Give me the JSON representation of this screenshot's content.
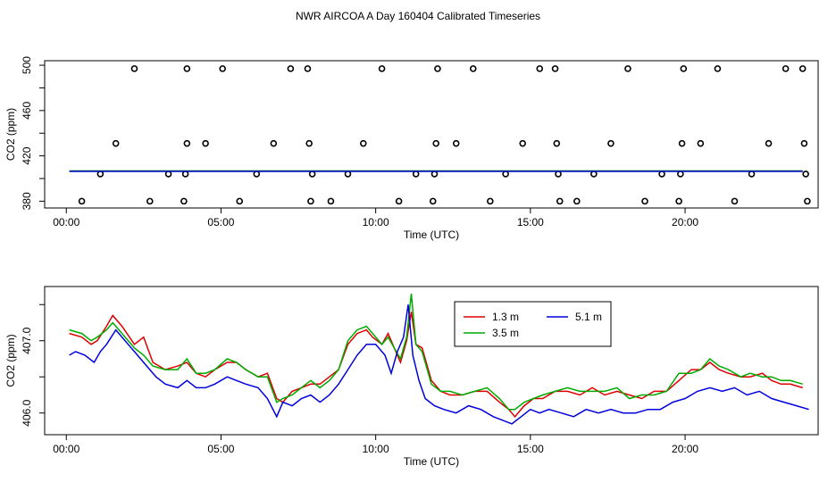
{
  "title": "NWR AIRCOA A  Day 160404  Calibrated Timeseries",
  "chart_data": [
    {
      "type": "scatter",
      "xlabel": "Time (UTC)",
      "ylabel": "CO2 (ppm)",
      "xlim": [
        -0.7,
        24.3
      ],
      "ylim": [
        374,
        504
      ],
      "xticks": [
        0,
        5,
        10,
        15,
        20
      ],
      "xtick_labels": [
        "00:00",
        "05:00",
        "10:00",
        "15:00",
        "20:00"
      ],
      "yticks": [
        380,
        420,
        460,
        500
      ],
      "ytick_labels": [
        "380",
        "420",
        "460",
        "500"
      ],
      "yminor": [
        400,
        440,
        480
      ],
      "grid": false,
      "series": [
        {
          "marker": "circle",
          "color": "#000000",
          "x": [
            0.5,
            1.1,
            1.6,
            2.2,
            2.7,
            3.3,
            3.8,
            3.85,
            3.9,
            3.9,
            4.5,
            5.05,
            5.6,
            6.15,
            6.7,
            7.25,
            7.8,
            7.85,
            7.9,
            7.95,
            8.55,
            9.1,
            9.6,
            10.2,
            10.75,
            11.3,
            11.85,
            11.9,
            11.95,
            12.0,
            12.6,
            13.15,
            13.7,
            14.2,
            14.75,
            15.3,
            15.8,
            15.85,
            15.9,
            15.95,
            16.5,
            17.05,
            17.6,
            18.15,
            18.7,
            19.25,
            19.8,
            19.85,
            19.9,
            19.95,
            20.5,
            21.05,
            21.6,
            22.15,
            22.7,
            23.25,
            23.8,
            23.85,
            23.9,
            23.95
          ],
          "y": [
            380,
            404,
            431,
            497,
            380,
            404,
            380,
            404,
            431,
            497,
            431,
            497,
            380,
            404,
            431,
            497,
            497,
            431,
            380,
            404,
            380,
            404,
            431,
            497,
            380,
            404,
            380,
            404,
            431,
            497,
            431,
            497,
            380,
            404,
            431,
            497,
            497,
            431,
            404,
            380,
            380,
            404,
            431,
            497,
            380,
            404,
            380,
            404,
            431,
            497,
            431,
            497,
            380,
            404,
            431,
            497,
            497,
            431,
            404,
            380
          ]
        },
        {
          "name": "1.3 m",
          "color": "#dd0000",
          "x": [
            0.1,
            23.8
          ],
          "y": [
            406.6,
            406.6
          ]
        },
        {
          "name": "3.5 m",
          "color": "#00aa00",
          "x": [
            0.1,
            23.8
          ],
          "y": [
            406.7,
            406.7
          ]
        },
        {
          "name": "5.1 m",
          "color": "#0000dd",
          "x": [
            0.1,
            23.8
          ],
          "y": [
            406.3,
            406.3
          ]
        }
      ]
    },
    {
      "type": "line",
      "xlabel": "Time (UTC)",
      "ylabel": "CO2 (ppm)",
      "xlim": [
        -0.7,
        24.3
      ],
      "ylim": [
        405.7,
        407.75
      ],
      "xticks": [
        0,
        5,
        10,
        15,
        20
      ],
      "xtick_labels": [
        "00:00",
        "05:00",
        "10:00",
        "15:00",
        "20:00"
      ],
      "yticks": [
        406.0,
        407.0
      ],
      "ytick_labels": [
        "406.0",
        "407.0"
      ],
      "yminor": [
        406.5,
        407.5
      ],
      "grid": false,
      "legend": "top-center",
      "legend_entries": [
        "1.3 m",
        "5.1 m",
        "3.5 m"
      ],
      "series": [
        {
          "name": "1.3 m",
          "color": "#dd0000",
          "x": [
            0.1,
            0.5,
            0.8,
            1.0,
            1.3,
            1.5,
            1.8,
            2.2,
            2.5,
            2.8,
            3.2,
            3.6,
            3.9,
            4.2,
            4.5,
            4.8,
            5.2,
            5.5,
            5.8,
            6.2,
            6.5,
            6.8,
            7.0,
            7.3,
            7.6,
            7.9,
            8.2,
            8.5,
            8.8,
            9.1,
            9.4,
            9.7,
            9.9,
            10.2,
            10.4,
            10.6,
            10.8,
            11.0,
            11.15,
            11.3,
            11.5,
            11.8,
            12.1,
            12.4,
            12.8,
            13.2,
            13.6,
            14.0,
            14.3,
            14.5,
            14.8,
            15.1,
            15.4,
            15.8,
            16.2,
            16.6,
            17.0,
            17.4,
            17.8,
            18.2,
            18.6,
            19.0,
            19.4,
            19.8,
            20.2,
            20.5,
            20.8,
            21.1,
            21.4,
            21.8,
            22.1,
            22.5,
            22.8,
            23.1,
            23.4,
            23.8
          ],
          "y": [
            407.1,
            407.05,
            406.95,
            407.0,
            407.2,
            407.35,
            407.2,
            406.95,
            407.05,
            406.7,
            406.6,
            406.65,
            406.7,
            406.55,
            406.5,
            406.6,
            406.7,
            406.7,
            406.6,
            406.5,
            406.55,
            406.2,
            406.15,
            406.3,
            406.35,
            406.4,
            406.4,
            406.5,
            406.6,
            406.95,
            407.1,
            407.15,
            407.05,
            406.95,
            407.1,
            406.9,
            406.7,
            407.0,
            407.4,
            406.95,
            406.9,
            406.45,
            406.3,
            406.25,
            406.25,
            406.3,
            406.3,
            406.15,
            406.05,
            405.95,
            406.1,
            406.2,
            406.2,
            406.3,
            406.3,
            406.25,
            406.35,
            406.25,
            406.3,
            406.25,
            406.2,
            406.3,
            406.3,
            406.45,
            406.6,
            406.6,
            406.7,
            406.6,
            406.55,
            406.5,
            406.5,
            406.55,
            406.45,
            406.4,
            406.4,
            406.35
          ]
        },
        {
          "name": "3.5 m",
          "color": "#00aa00",
          "x": [
            0.1,
            0.5,
            0.8,
            1.0,
            1.3,
            1.5,
            1.8,
            2.2,
            2.5,
            2.8,
            3.2,
            3.6,
            3.9,
            4.2,
            4.5,
            4.8,
            5.2,
            5.5,
            5.8,
            6.2,
            6.5,
            6.8,
            7.0,
            7.3,
            7.6,
            7.9,
            8.2,
            8.5,
            8.8,
            9.1,
            9.4,
            9.7,
            9.9,
            10.2,
            10.4,
            10.6,
            10.8,
            11.0,
            11.15,
            11.3,
            11.5,
            11.8,
            12.1,
            12.4,
            12.8,
            13.2,
            13.6,
            14.0,
            14.3,
            14.5,
            14.8,
            15.1,
            15.4,
            15.8,
            16.2,
            16.6,
            17.0,
            17.4,
            17.8,
            18.2,
            18.6,
            19.0,
            19.4,
            19.8,
            20.2,
            20.5,
            20.8,
            21.1,
            21.4,
            21.8,
            22.1,
            22.5,
            22.8,
            23.1,
            23.4,
            23.8
          ],
          "y": [
            407.15,
            407.1,
            407.0,
            407.05,
            407.15,
            407.25,
            407.1,
            406.9,
            406.8,
            406.65,
            406.6,
            406.6,
            406.75,
            406.55,
            406.55,
            406.6,
            406.75,
            406.7,
            406.6,
            406.5,
            406.5,
            406.15,
            406.2,
            406.25,
            406.35,
            406.45,
            406.35,
            406.45,
            406.6,
            407.0,
            407.15,
            407.2,
            407.1,
            406.95,
            407.05,
            406.9,
            406.75,
            407.05,
            407.65,
            406.95,
            406.85,
            406.4,
            406.3,
            406.3,
            406.25,
            406.3,
            406.35,
            406.2,
            406.05,
            406.05,
            406.15,
            406.2,
            406.25,
            406.3,
            406.35,
            406.3,
            406.3,
            406.3,
            406.35,
            406.2,
            406.25,
            406.25,
            406.3,
            406.55,
            406.55,
            406.6,
            406.75,
            406.65,
            406.6,
            406.5,
            406.55,
            406.5,
            406.5,
            406.45,
            406.45,
            406.4
          ]
        },
        {
          "name": "5.1 m",
          "color": "#0000dd",
          "x": [
            0.1,
            0.3,
            0.6,
            0.9,
            1.1,
            1.3,
            1.6,
            2.0,
            2.3,
            2.6,
            2.9,
            3.2,
            3.6,
            3.9,
            4.2,
            4.5,
            4.8,
            5.2,
            5.5,
            5.8,
            6.2,
            6.5,
            6.8,
            7.0,
            7.3,
            7.6,
            7.9,
            8.2,
            8.5,
            8.8,
            9.1,
            9.4,
            9.7,
            10.0,
            10.3,
            10.5,
            10.7,
            10.9,
            11.05,
            11.2,
            11.4,
            11.6,
            11.9,
            12.2,
            12.6,
            13.0,
            13.4,
            13.8,
            14.1,
            14.4,
            14.7,
            15.0,
            15.3,
            15.6,
            16.0,
            16.4,
            16.8,
            17.2,
            17.6,
            18.0,
            18.4,
            18.8,
            19.2,
            19.6,
            20.0,
            20.4,
            20.8,
            21.2,
            21.6,
            22.0,
            22.4,
            22.8,
            23.2,
            23.6,
            24.0
          ],
          "y": [
            406.8,
            406.85,
            406.8,
            406.7,
            406.85,
            406.95,
            407.15,
            406.95,
            406.8,
            406.65,
            406.5,
            406.4,
            406.35,
            406.45,
            406.35,
            406.35,
            406.4,
            406.5,
            406.45,
            406.4,
            406.35,
            406.2,
            405.95,
            406.15,
            406.1,
            406.2,
            406.25,
            406.15,
            406.25,
            406.4,
            406.6,
            406.8,
            406.95,
            406.95,
            406.8,
            406.55,
            406.85,
            407.05,
            407.5,
            406.8,
            406.45,
            406.2,
            406.1,
            406.05,
            406.0,
            406.1,
            406.05,
            405.95,
            405.9,
            405.85,
            405.95,
            406.05,
            406.0,
            406.05,
            406.0,
            405.95,
            406.05,
            406.0,
            406.05,
            406.0,
            406.0,
            406.05,
            406.05,
            406.15,
            406.2,
            406.3,
            406.35,
            406.3,
            406.35,
            406.25,
            406.3,
            406.2,
            406.15,
            406.1,
            406.05
          ]
        }
      ]
    }
  ]
}
